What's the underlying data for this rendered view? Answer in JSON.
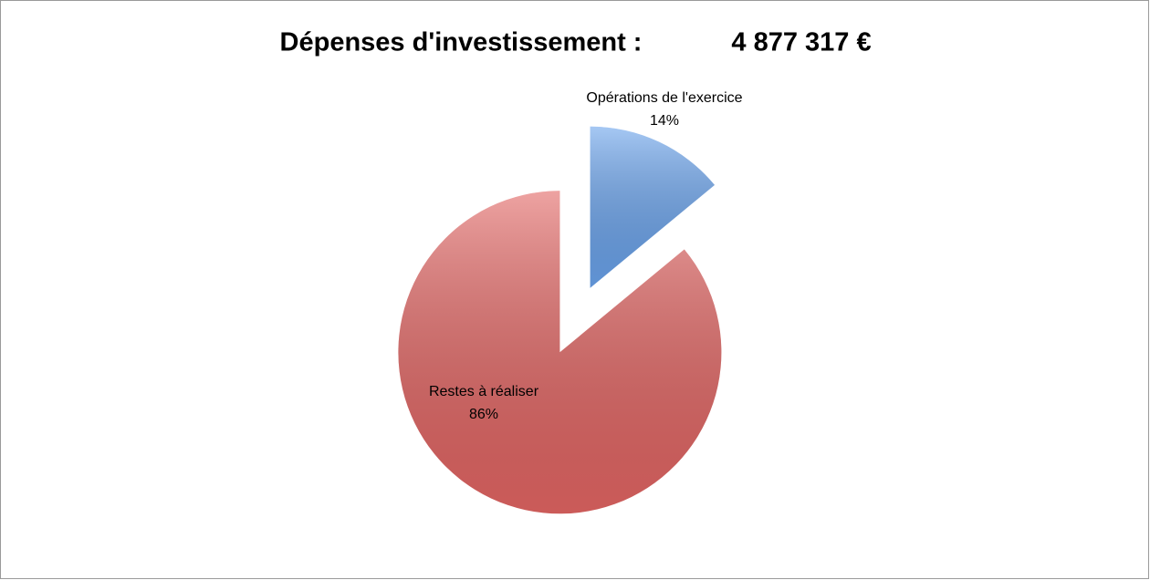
{
  "chart_data": {
    "type": "pie",
    "title": "Dépenses d'investissement :",
    "total": "4 877 317 €",
    "categories": [
      "Opérations de l'exercice",
      "Restes à réaliser"
    ],
    "values": [
      14,
      86
    ],
    "value_labels": [
      "14%",
      "86%"
    ],
    "colors": [
      "#6aa3ec",
      "#e26563"
    ],
    "exploded": true
  }
}
